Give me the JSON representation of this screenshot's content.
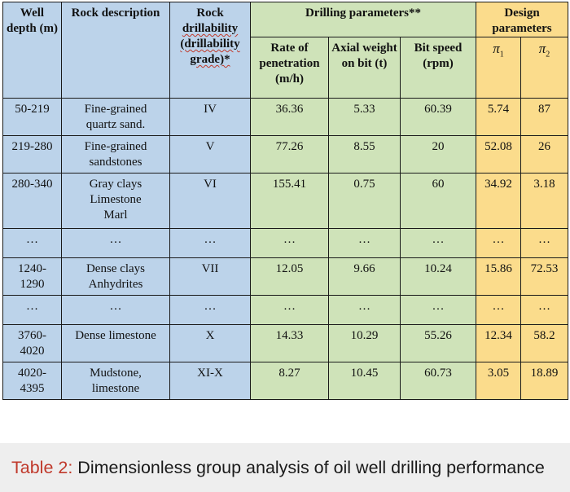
{
  "headers": {
    "well_depth": "Well depth (m)",
    "rock_description": "Rock description",
    "rock_drillability_1": "Rock",
    "rock_drillability_2": "drillability",
    "rock_drillability_3": "(drillability",
    "rock_drillability_4": "grade)*",
    "drilling_parameters": "Drilling parameters**",
    "design_parameters": "Design parameters",
    "rate_of_penetration": "Rate of penetration (m/h)",
    "axial_weight": "Axial weight on bit (t)",
    "bit_speed": "Bit speed (rpm)",
    "pi1_symbol": "π",
    "pi1_sub": "1",
    "pi2_symbol": "π",
    "pi2_sub": "2"
  },
  "rows": [
    {
      "depth": "50-219",
      "desc": [
        "Fine-grained",
        "quartz sand."
      ],
      "grade": "IV",
      "rop": "36.36",
      "wob": "5.33",
      "rpm": "60.39",
      "pi1": "5.74",
      "pi2": "87"
    },
    {
      "depth": "219-280",
      "desc": [
        "Fine-grained",
        "sandstones"
      ],
      "grade": "V",
      "rop": "77.26",
      "wob": "8.55",
      "rpm": "20",
      "pi1": "52.08",
      "pi2": "26"
    },
    {
      "depth": "280-340",
      "desc": [
        "Gray clays",
        "Limestone",
        "Marl"
      ],
      "grade": "VI",
      "rop": "155.41",
      "wob": "0.75",
      "rpm": "60",
      "pi1": "34.92",
      "pi2": "3.18"
    },
    {
      "depth": "…",
      "desc": [
        "…"
      ],
      "grade": "…",
      "rop": "…",
      "wob": "…",
      "rpm": "…",
      "pi1": "…",
      "pi2": "…"
    },
    {
      "depth": [
        "1240-",
        "1290"
      ],
      "desc": [
        "Dense clays",
        "Anhydrites"
      ],
      "grade": "VII",
      "rop": "12.05",
      "wob": "9.66",
      "rpm": "10.24",
      "pi1": "15.86",
      "pi2": "72.53"
    },
    {
      "depth": "…",
      "desc": [
        "…"
      ],
      "grade": "…",
      "rop": "…",
      "wob": "…",
      "rpm": "…",
      "pi1": "…",
      "pi2": "…"
    },
    {
      "depth": [
        "3760-",
        "4020"
      ],
      "desc": [
        "Dense limestone"
      ],
      "grade": "X",
      "rop": "14.33",
      "wob": "10.29",
      "rpm": "55.26",
      "pi1": "12.34",
      "pi2": "58.2"
    },
    {
      "depth": [
        "4020-",
        "4395"
      ],
      "desc": [
        "Mudstone,",
        "limestone"
      ],
      "grade": "XI-X",
      "rop": "8.27",
      "wob": "10.45",
      "rpm": "60.73",
      "pi1": "3.05",
      "pi2": "18.89"
    }
  ],
  "caption": {
    "label": "Table 2:",
    "text": " Dimensionless group analysis of oil well drilling performance"
  },
  "colors": {
    "blue": "#bcd3ea",
    "green": "#cfe3b9",
    "yellow": "#fbdc8c",
    "caption_label": "#c0392b",
    "caption_bg": "#eeeeee"
  }
}
